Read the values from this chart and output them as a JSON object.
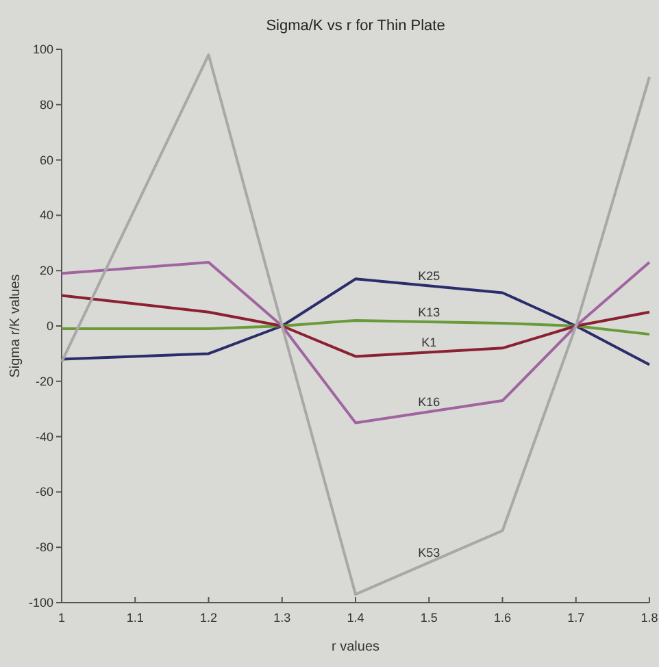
{
  "chart_data": {
    "type": "line",
    "title": "Sigma/K vs r for Thin Plate",
    "xlabel": "r values",
    "ylabel": "Sigma r/K values",
    "x": [
      1,
      1.2,
      1.3,
      1.4,
      1.6,
      1.7,
      1.8
    ],
    "series": [
      {
        "name": "K25",
        "color": "#2b2d6b",
        "values": [
          -12,
          -10,
          0,
          17,
          12,
          0,
          -14
        ]
      },
      {
        "name": "K13",
        "color": "#6a9a3a",
        "values": [
          -1,
          -1,
          0,
          2,
          1,
          0,
          -3
        ]
      },
      {
        "name": "K1",
        "color": "#8b2030",
        "values": [
          11,
          5,
          0,
          -11,
          -8,
          0,
          5
        ]
      },
      {
        "name": "K16",
        "color": "#a064a0",
        "values": [
          19,
          23,
          0,
          -35,
          -27,
          0,
          23
        ]
      },
      {
        "name": "K53",
        "color": "#a8a8a8",
        "values": [
          -13,
          98,
          0,
          -97,
          -74,
          0,
          90
        ]
      }
    ],
    "xlim": [
      1,
      1.8
    ],
    "xticks": [
      1,
      1.1,
      1.2,
      1.3,
      1.4,
      1.5,
      1.6,
      1.7,
      1.8
    ],
    "ylim": [
      -100,
      100
    ],
    "yticks": [
      -100,
      -80,
      -60,
      -40,
      -20,
      0,
      20,
      40,
      60,
      80,
      100
    ],
    "grid": false
  }
}
